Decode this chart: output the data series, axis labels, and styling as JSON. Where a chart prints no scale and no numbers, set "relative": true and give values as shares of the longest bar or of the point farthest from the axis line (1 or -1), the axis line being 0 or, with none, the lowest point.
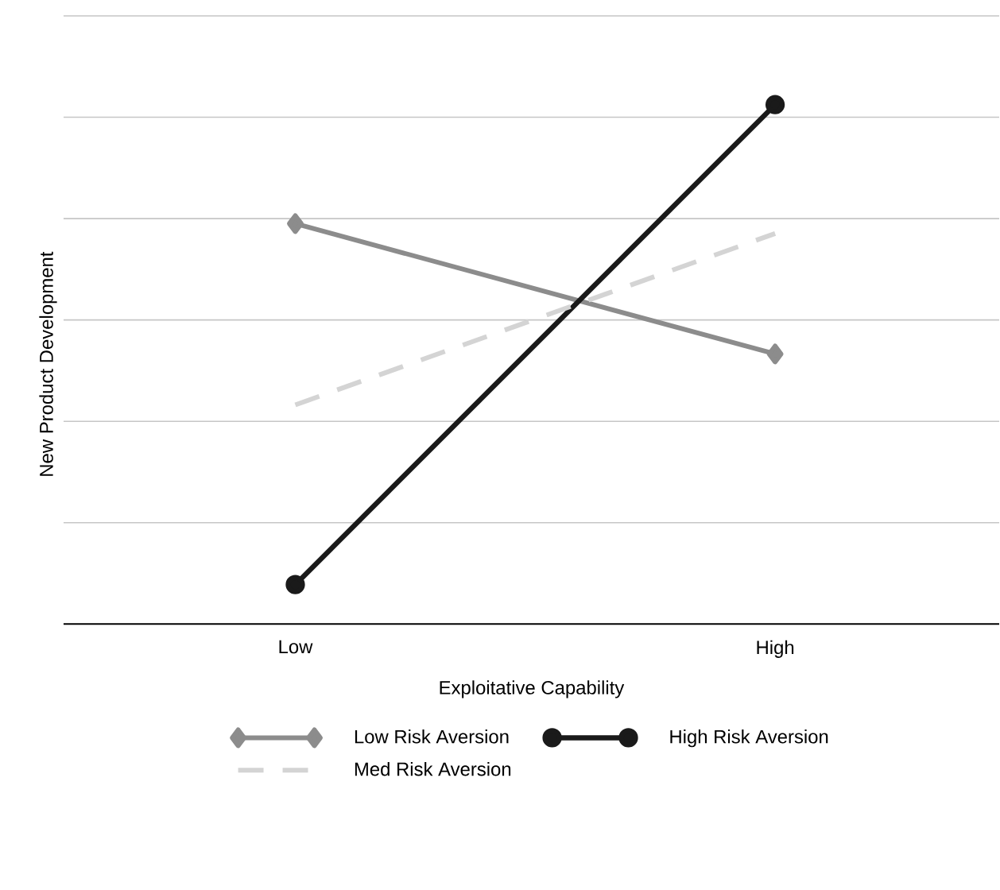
{
  "chart_data": {
    "type": "line",
    "xlabel": "Exploitative Capability",
    "ylabel": "New Product Development",
    "categories": [
      "Low",
      "High"
    ],
    "relative": true,
    "grid": "y",
    "legend": "bottom",
    "series": [
      {
        "name": "Low Risk Aversion",
        "color": "#8c8c8c",
        "values": [
          0.771,
          0.52
        ],
        "marker": "diamond",
        "line_style": "solid"
      },
      {
        "name": "High Risk Aversion",
        "color": "#1a1a1a",
        "values": [
          0.076,
          1
        ],
        "marker": "circle",
        "line_style": "solid"
      },
      {
        "name": "Med Risk Aversion",
        "color": "#d4d4d4",
        "values": [
          0.422,
          0.752
        ],
        "marker": "none",
        "line_style": "dashed"
      }
    ]
  }
}
